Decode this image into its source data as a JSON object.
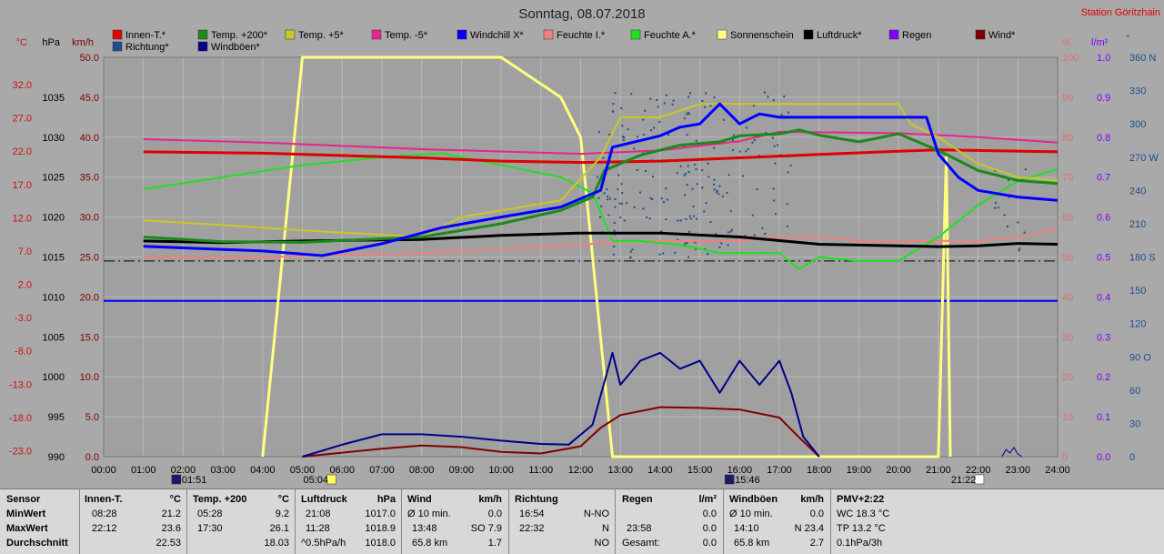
{
  "title": "Sonntag, 08.07.2018",
  "station": "Station Göritzhain",
  "legend": [
    {
      "label": "Innen-T.*",
      "color": "#e00000"
    },
    {
      "label": "Temp. +200*",
      "color": "#1a8a1a"
    },
    {
      "label": "Temp. +5*",
      "color": "#c8c828"
    },
    {
      "label": "Temp. -5*",
      "color": "#e8258a"
    },
    {
      "label": "Windchill X*",
      "color": "#0000ff"
    },
    {
      "label": "Feuchte I.*",
      "color": "#f08080"
    },
    {
      "label": "Feuchte A.*",
      "color": "#20e020"
    },
    {
      "label": "Sonnenschein",
      "color": "#ffff80"
    },
    {
      "label": "Luftdruck*",
      "color": "#000000"
    },
    {
      "label": "Regen",
      "color": "#8000ff"
    },
    {
      "label": "Wind*",
      "color": "#800000"
    },
    {
      "label": "Richtung*",
      "color": "#1e4f8c"
    },
    {
      "label": "Windböen*",
      "color": "#00008b"
    }
  ],
  "axes": {
    "celsius_unit": "°C",
    "hpa_unit": "hPa",
    "kmh_unit": "km/h",
    "percent_unit": "%",
    "rain_unit": "l/m²",
    "dir_unit": "°",
    "celsius_ticks": [
      "32.0",
      "27.0",
      "22.0",
      "17.0",
      "12.0",
      "7.0",
      "2.0",
      "-3.0",
      "-8.0",
      "-13.0",
      "-18.0",
      "-23.0"
    ],
    "hpa_ticks": [
      "1035",
      "1030",
      "1025",
      "1020",
      "1015",
      "1010",
      "1005",
      "1000",
      "995",
      "990"
    ],
    "kmh_ticks": [
      "50.0",
      "45.0",
      "40.0",
      "35.0",
      "30.0",
      "25.0",
      "20.0",
      "15.0",
      "10.0",
      "5.0",
      "0.0"
    ],
    "percent_ticks": [
      "100",
      "90",
      "80",
      "70",
      "60",
      "50",
      "40",
      "30",
      "20",
      "10",
      "0"
    ],
    "rain_ticks": [
      "1.0",
      "0.9",
      "0.8",
      "0.7",
      "0.6",
      "0.5",
      "0.4",
      "0.3",
      "0.2",
      "0.1",
      "0.0"
    ],
    "dir_ticks": [
      "360 N",
      "330",
      "300",
      "270 W",
      "240",
      "210",
      "180 S",
      "150",
      "120",
      "90 O",
      "60",
      "30",
      "0"
    ],
    "time_ticks": [
      "00:00",
      "01:00",
      "02:00",
      "03:00",
      "04:00",
      "05:00",
      "06:00",
      "07:00",
      "08:00",
      "09:00",
      "10:00",
      "11:00",
      "12:00",
      "13:00",
      "14:00",
      "15:00",
      "16:00",
      "17:00",
      "18:00",
      "19:00",
      "20:00",
      "21:00",
      "22:00",
      "23:00",
      "24:00"
    ]
  },
  "markers": {
    "moonset": "01:51",
    "sunrise": "05:04",
    "moonrise": "15:46",
    "sunset": "21:22"
  },
  "chart_data": {
    "type": "line",
    "title": "Sonntag, 08.07.2018",
    "x_range": [
      "00:00",
      "24:00"
    ],
    "left_scales": {
      "celsius": [
        -23,
        37
      ],
      "hpa": [
        990,
        1040
      ],
      "kmh": [
        0,
        50
      ]
    },
    "right_scales": {
      "percent": [
        0,
        100
      ],
      "rain": [
        0,
        1.0
      ],
      "direction": [
        0,
        360
      ]
    },
    "series": [
      {
        "name": "Innen-T.*",
        "unit": "°C",
        "x": [
          1,
          4,
          8,
          10,
          12,
          14,
          16,
          18,
          20,
          21,
          22,
          24
        ],
        "y": [
          22.8,
          22.6,
          21.9,
          21.4,
          21.2,
          21.4,
          21.9,
          22.4,
          22.9,
          23.1,
          23.0,
          22.8
        ]
      },
      {
        "name": "Temp. +200*",
        "unit": "°C",
        "x": [
          1,
          3,
          5,
          8,
          10,
          11.5,
          12.3,
          12.6,
          13.5,
          14.5,
          15.5,
          16,
          17,
          17.5,
          18,
          19,
          20,
          21,
          22,
          23,
          24
        ],
        "y": [
          10.0,
          9.3,
          9.2,
          10.0,
          12.0,
          14.0,
          16.0,
          20.0,
          22.3,
          23.8,
          24.3,
          25.2,
          25.5,
          26.1,
          25.3,
          24.3,
          25.5,
          23.0,
          20.0,
          18.5,
          18.03
        ]
      },
      {
        "name": "Temp. +5*",
        "unit": "°C",
        "x": [
          1,
          3,
          5,
          8,
          9,
          11.5,
          12.5,
          13,
          14,
          15,
          16,
          17,
          18,
          19,
          20,
          20.3,
          21,
          22,
          23,
          24
        ],
        "y": [
          12.5,
          11.8,
          11.0,
          10.0,
          13.0,
          15.5,
          22.0,
          28.0,
          28.0,
          30.0,
          30.0,
          30.0,
          30.0,
          30.0,
          30.0,
          27.0,
          25.0,
          21.0,
          19.0,
          18.5
        ]
      },
      {
        "name": "Temp. -5*",
        "unit": "°C",
        "x": [
          1,
          4,
          8,
          12,
          14,
          16,
          17,
          20,
          22,
          24
        ],
        "y": [
          24.7,
          24.2,
          23.2,
          22.5,
          23.0,
          24.4,
          25.8,
          25.6,
          25.0,
          24.2
        ]
      },
      {
        "name": "Windchill X*",
        "unit": "°C",
        "x": [
          1,
          4,
          5.5,
          7,
          8.5,
          10,
          11.5,
          12.5,
          12.8,
          13.5,
          14,
          14.5,
          15,
          15.5,
          16,
          16.5,
          17,
          18,
          19,
          20,
          20.7,
          21,
          21.5,
          22,
          23,
          24
        ],
        "y": [
          8.6,
          7.9,
          7.2,
          9.0,
          11.4,
          13.0,
          14.5,
          17.0,
          23.5,
          24.5,
          25.2,
          26.5,
          27.0,
          30.0,
          27.0,
          28.5,
          28.0,
          28.0,
          28.0,
          28.0,
          28.0,
          22.5,
          19.0,
          17.0,
          16.0,
          15.5
        ]
      },
      {
        "name": "Feuchte I.*",
        "unit": "%",
        "x": [
          1,
          4,
          8,
          12,
          13,
          14,
          15,
          16,
          17,
          18,
          19,
          20,
          21,
          22,
          23,
          24
        ],
        "y": [
          50,
          50,
          51,
          53,
          54,
          54,
          54,
          54,
          55,
          55,
          54,
          54,
          54,
          54,
          55,
          57
        ]
      },
      {
        "name": "Feuchte A.*",
        "unit": "%",
        "x": [
          1,
          3,
          5,
          7,
          8.5,
          11.5,
          12.3,
          12.8,
          13.5,
          14.5,
          15.5,
          16,
          17,
          17.5,
          18,
          19,
          20,
          20.5,
          21,
          22,
          23,
          24
        ],
        "y": [
          67,
          70,
          73,
          75,
          76,
          70,
          66,
          54,
          54,
          53,
          51,
          51,
          51,
          47,
          50,
          49,
          49,
          52,
          55,
          63,
          69,
          72
        ]
      },
      {
        "name": "Sonnenschein",
        "unit": "%",
        "x": [
          4,
          5,
          5.5,
          10,
          11.5,
          12,
          12.8,
          13,
          20.7,
          21,
          21.2,
          21.3
        ],
        "y": [
          0,
          100,
          100,
          100,
          90,
          80,
          0,
          0,
          0,
          0,
          75,
          0
        ]
      },
      {
        "name": "Luftdruck*",
        "unit": "hPa",
        "x": [
          1,
          3,
          5,
          8,
          10,
          12,
          14,
          16,
          18,
          20,
          21,
          22,
          23,
          24
        ],
        "y": [
          1017.0,
          1016.8,
          1017.0,
          1017.2,
          1017.7,
          1018.0,
          1018.0,
          1017.5,
          1016.6,
          1016.4,
          1016.3,
          1016.4,
          1016.7,
          1016.6
        ]
      },
      {
        "name": "Wind*",
        "unit": "km/h",
        "x": [
          5,
          6,
          7,
          8,
          9,
          10,
          11,
          12,
          12.5,
          13,
          14,
          15,
          16,
          17,
          17.5,
          18
        ],
        "y": [
          0,
          0.5,
          1.0,
          1.4,
          1.2,
          0.6,
          0.4,
          1.3,
          3.6,
          5.2,
          6.2,
          6.1,
          5.9,
          4.9,
          2.4,
          0.0
        ]
      },
      {
        "name": "Windböen*",
        "unit": "km/h",
        "x": [
          5,
          6,
          7,
          8,
          9,
          10,
          11,
          11.7,
          12.3,
          12.8,
          13,
          13.5,
          14,
          14.5,
          15,
          15.5,
          16,
          16.5,
          17,
          17.3,
          17.6,
          18
        ],
        "y": [
          0,
          1.5,
          2.8,
          2.8,
          2.5,
          2.0,
          1.6,
          1.5,
          4.0,
          13.0,
          9.0,
          12.0,
          13.0,
          11.0,
          12.0,
          8.0,
          12.0,
          9.0,
          12.0,
          8.0,
          2.5,
          0.0
        ]
      }
    ],
    "reference_lines": [
      {
        "unit": "kmh",
        "y": 24.5,
        "style": "dash-dot",
        "color": "#000000"
      },
      {
        "unit": "kmh",
        "y": 19.5,
        "style": "solid",
        "color": "#0000ff"
      }
    ],
    "grid": true,
    "legend_position": "top"
  },
  "stats": {
    "rows": [
      "Sensor",
      "MinWert",
      "MaxWert",
      "Durchschnitt"
    ],
    "innen": {
      "title": "Innen-T.",
      "unit": "°C",
      "min_time": "08:28",
      "min": "21.2",
      "max_time": "22:12",
      "max": "23.6",
      "avg": "22.53"
    },
    "temp200": {
      "title": "Temp. +200",
      "unit": "°C",
      "min_time": "05:28",
      "min": "9.2",
      "max_time": "17:30",
      "max": "26.1",
      "avg": "18.03"
    },
    "druck": {
      "title": "Luftdruck",
      "unit": "hPa",
      "min_time": "21:08",
      "min": "1017.0",
      "max_time": "11:28",
      "max": "1018.9",
      "avg_label": "^0.5hPa/h",
      "avg": "1018.0"
    },
    "wind": {
      "title": "Wind",
      "unit": "km/h",
      "r1_label": "Ø 10 min.",
      "r1": "0.0",
      "r2_time": "13:48",
      "r2": "SO 7.9",
      "r3_label": "65.8 km",
      "r3": "1.7"
    },
    "richtung": {
      "title": "Richtung",
      "r1_time": "16:54",
      "r1": "N-NO",
      "r2_time": "22:32",
      "r2": "N",
      "r3": "NO"
    },
    "regen": {
      "title": "Regen",
      "unit": "l/m²",
      "r1": "0.0",
      "r2_time": "23:58",
      "r2": "0.0",
      "r3_label": "Gesamt:",
      "r3": "0.0"
    },
    "boeen": {
      "title": "Windböen",
      "unit": "km/h",
      "r1_label": "Ø 10 min.",
      "r1": "0.0",
      "r2_time": "14:10",
      "r2": "N 23.4",
      "r3_label": "65.8 km",
      "r3": "2.7"
    },
    "pmv": {
      "title": "PMV+2:22",
      "r1": "WC 18.3 °C",
      "r2": "TP 13.2 °C",
      "r3": "0.1hPa/3h"
    }
  }
}
